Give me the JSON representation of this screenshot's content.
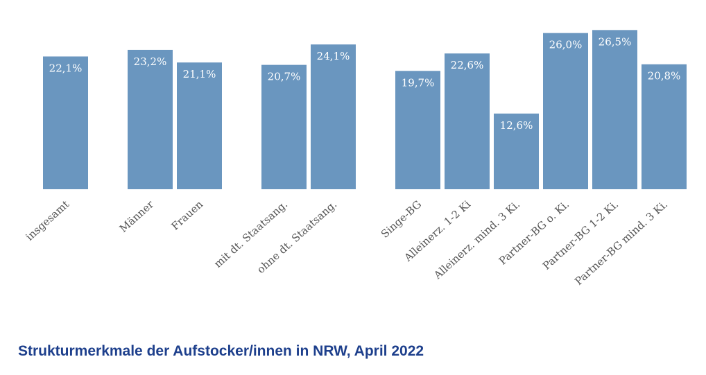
{
  "chart_data": {
    "type": "bar",
    "title": "Strukturmerkmale der Aufstocker/innen in NRW, April 2022",
    "categories": [
      "insgesamt",
      "Männer",
      "Frauen",
      "mit dt. Staatsang.",
      "ohne dt. Staatsang.",
      "Singe-BG",
      "Alleinerz. 1-2 Ki",
      "Alleinerz. mind. 3 Ki.",
      "Partner-BG o. Ki.",
      "Partner-BG 1-2 Ki.",
      "Partner-BG mind. 3 Ki."
    ],
    "values": [
      22.1,
      23.2,
      21.1,
      20.7,
      24.1,
      19.7,
      22.6,
      12.6,
      26.0,
      26.5,
      20.8
    ],
    "value_labels": [
      "22,1%",
      "23,2%",
      "21,1%",
      "20,7%",
      "24,1%",
      "19,7%",
      "22,6%",
      "12,6%",
      "26,0%",
      "26,5%",
      "20,8%"
    ],
    "color": "#6a96bf",
    "ylim": [
      0,
      30
    ]
  }
}
